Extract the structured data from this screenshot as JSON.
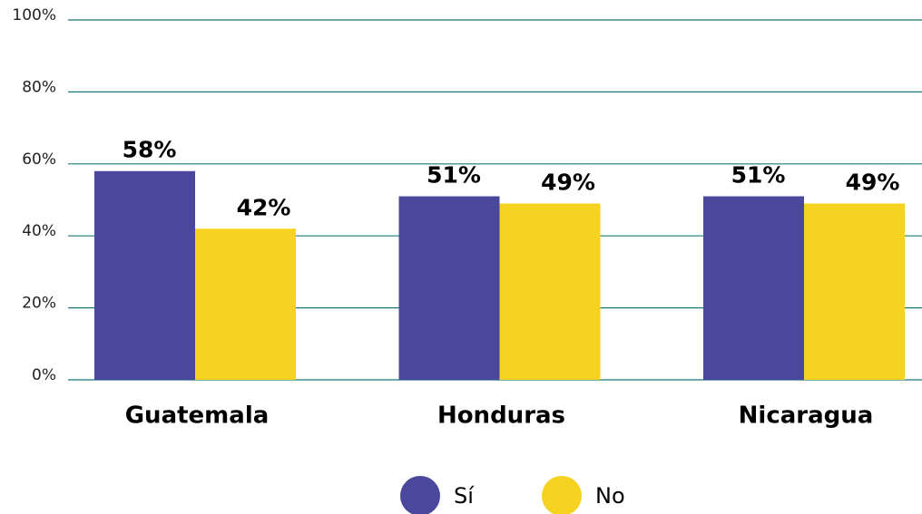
{
  "chart_data": {
    "type": "bar",
    "categories": [
      "Guatemala",
      "Honduras",
      "Nicaragua"
    ],
    "series": [
      {
        "name": "Sí",
        "color": "#4a489c",
        "values": [
          58,
          51,
          51
        ],
        "value_labels": [
          "58%",
          "51%",
          "51%"
        ]
      },
      {
        "name": "No",
        "color": "#f5d320",
        "values": [
          42,
          49,
          49
        ],
        "value_labels": [
          "42%",
          "49%",
          "49%"
        ]
      }
    ],
    "ylim": [
      0,
      100
    ],
    "yticks": [
      {
        "value": 0,
        "label": "0%"
      },
      {
        "value": 20,
        "label": "20%"
      },
      {
        "value": 40,
        "label": "40%"
      },
      {
        "value": 60,
        "label": "60%"
      },
      {
        "value": 80,
        "label": "80%"
      },
      {
        "value": 100,
        "label": "100%"
      }
    ],
    "grid": true,
    "legend": "bottom"
  }
}
